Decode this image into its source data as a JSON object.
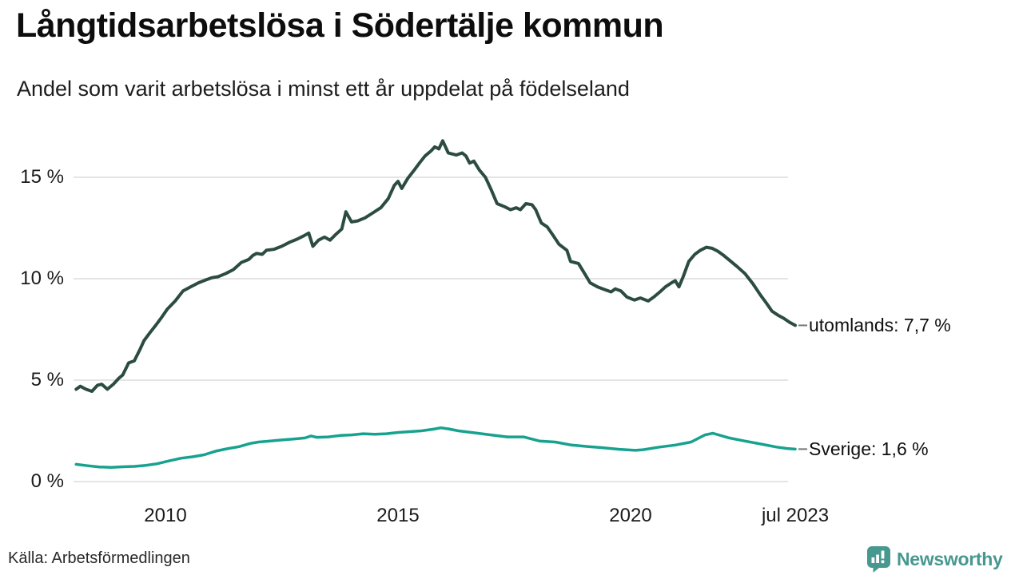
{
  "header": {
    "title": "Långtidsarbetslösa i Södertälje kommun",
    "subtitle": "Andel som varit arbetslösa i minst ett år uppdelat på födelseland"
  },
  "footer": {
    "source": "Källa: Arbetsförmedlingen",
    "brand": "Newsworthy"
  },
  "colors": {
    "series_utomlands": "#2c4c42",
    "series_sverige": "#17a28f",
    "grid": "#e4e4e4",
    "leader_dash": "#777777",
    "brand_teal": "#47988e",
    "text": "#1a1a1a"
  },
  "chart_data": {
    "type": "line",
    "title": "Långtidsarbetslösa i Södertälje kommun",
    "subtitle": "Andel som varit arbetslösa i minst ett år uppdelat på födelseland",
    "unit": "%",
    "grid": "horizontal",
    "legend_position": "right-end-labels",
    "x_axis": {
      "range": [
        2008.0,
        2023.6
      ],
      "ticks": [
        {
          "label": "2010",
          "year": 2010
        },
        {
          "label": "2015",
          "year": 2015
        },
        {
          "label": "2020",
          "year": 2020
        },
        {
          "label": "jul 2023",
          "year": 2023.54
        }
      ]
    },
    "y_axis": {
      "range": [
        0,
        17.3
      ],
      "ticks": [
        {
          "label": "15 %",
          "value": 15
        },
        {
          "label": "10 %",
          "value": 10
        },
        {
          "label": "5 %",
          "value": 5
        },
        {
          "label": "0 %",
          "value": 0
        }
      ]
    },
    "series": [
      {
        "name": "utomlands",
        "label": "utomlands: 7,7 %",
        "end_value": 7.7,
        "color": "#2c4c42",
        "stroke_width": 4,
        "points": [
          [
            2008.08,
            4.55
          ],
          [
            2008.17,
            4.7
          ],
          [
            2008.29,
            4.55
          ],
          [
            2008.42,
            4.45
          ],
          [
            2008.54,
            4.75
          ],
          [
            2008.63,
            4.8
          ],
          [
            2008.75,
            4.55
          ],
          [
            2008.88,
            4.8
          ],
          [
            2009.0,
            5.1
          ],
          [
            2009.08,
            5.25
          ],
          [
            2009.21,
            5.85
          ],
          [
            2009.33,
            5.95
          ],
          [
            2009.46,
            6.55
          ],
          [
            2009.54,
            6.95
          ],
          [
            2009.67,
            7.35
          ],
          [
            2009.79,
            7.7
          ],
          [
            2009.92,
            8.1
          ],
          [
            2010.04,
            8.5
          ],
          [
            2010.21,
            8.9
          ],
          [
            2010.38,
            9.4
          ],
          [
            2010.54,
            9.6
          ],
          [
            2010.71,
            9.8
          ],
          [
            2010.88,
            9.95
          ],
          [
            2011.0,
            10.05
          ],
          [
            2011.13,
            10.1
          ],
          [
            2011.29,
            10.25
          ],
          [
            2011.46,
            10.45
          ],
          [
            2011.63,
            10.8
          ],
          [
            2011.79,
            10.95
          ],
          [
            2011.88,
            11.15
          ],
          [
            2011.96,
            11.25
          ],
          [
            2012.08,
            11.2
          ],
          [
            2012.17,
            11.4
          ],
          [
            2012.33,
            11.45
          ],
          [
            2012.5,
            11.6
          ],
          [
            2012.67,
            11.8
          ],
          [
            2012.83,
            11.95
          ],
          [
            2012.96,
            12.1
          ],
          [
            2013.08,
            12.25
          ],
          [
            2013.17,
            11.6
          ],
          [
            2013.29,
            11.9
          ],
          [
            2013.42,
            12.05
          ],
          [
            2013.54,
            11.9
          ],
          [
            2013.67,
            12.2
          ],
          [
            2013.79,
            12.45
          ],
          [
            2013.88,
            13.3
          ],
          [
            2014.0,
            12.8
          ],
          [
            2014.13,
            12.85
          ],
          [
            2014.29,
            13.0
          ],
          [
            2014.46,
            13.25
          ],
          [
            2014.63,
            13.5
          ],
          [
            2014.79,
            13.95
          ],
          [
            2014.92,
            14.6
          ],
          [
            2015.0,
            14.8
          ],
          [
            2015.08,
            14.45
          ],
          [
            2015.21,
            14.95
          ],
          [
            2015.33,
            15.3
          ],
          [
            2015.46,
            15.7
          ],
          [
            2015.58,
            16.05
          ],
          [
            2015.71,
            16.3
          ],
          [
            2015.79,
            16.5
          ],
          [
            2015.88,
            16.4
          ],
          [
            2015.96,
            16.8
          ],
          [
            2016.08,
            16.2
          ],
          [
            2016.25,
            16.1
          ],
          [
            2016.38,
            16.2
          ],
          [
            2016.46,
            16.05
          ],
          [
            2016.54,
            15.7
          ],
          [
            2016.63,
            15.8
          ],
          [
            2016.75,
            15.35
          ],
          [
            2016.88,
            15.0
          ],
          [
            2017.0,
            14.4
          ],
          [
            2017.13,
            13.7
          ],
          [
            2017.29,
            13.55
          ],
          [
            2017.42,
            13.4
          ],
          [
            2017.54,
            13.5
          ],
          [
            2017.63,
            13.4
          ],
          [
            2017.75,
            13.7
          ],
          [
            2017.88,
            13.65
          ],
          [
            2017.96,
            13.4
          ],
          [
            2018.08,
            12.75
          ],
          [
            2018.21,
            12.55
          ],
          [
            2018.33,
            12.15
          ],
          [
            2018.46,
            11.7
          ],
          [
            2018.63,
            11.4
          ],
          [
            2018.71,
            10.85
          ],
          [
            2018.88,
            10.75
          ],
          [
            2019.0,
            10.3
          ],
          [
            2019.13,
            9.8
          ],
          [
            2019.29,
            9.6
          ],
          [
            2019.46,
            9.45
          ],
          [
            2019.58,
            9.35
          ],
          [
            2019.67,
            9.5
          ],
          [
            2019.79,
            9.4
          ],
          [
            2019.92,
            9.1
          ],
          [
            2020.08,
            8.95
          ],
          [
            2020.21,
            9.05
          ],
          [
            2020.38,
            8.9
          ],
          [
            2020.5,
            9.1
          ],
          [
            2020.63,
            9.35
          ],
          [
            2020.75,
            9.6
          ],
          [
            2020.88,
            9.8
          ],
          [
            2020.96,
            9.9
          ],
          [
            2021.04,
            9.6
          ],
          [
            2021.13,
            10.1
          ],
          [
            2021.25,
            10.85
          ],
          [
            2021.38,
            11.2
          ],
          [
            2021.5,
            11.4
          ],
          [
            2021.63,
            11.55
          ],
          [
            2021.75,
            11.5
          ],
          [
            2021.88,
            11.35
          ],
          [
            2022.0,
            11.15
          ],
          [
            2022.13,
            10.9
          ],
          [
            2022.29,
            10.6
          ],
          [
            2022.46,
            10.25
          ],
          [
            2022.63,
            9.75
          ],
          [
            2022.79,
            9.2
          ],
          [
            2022.92,
            8.8
          ],
          [
            2023.04,
            8.4
          ],
          [
            2023.17,
            8.2
          ],
          [
            2023.29,
            8.05
          ],
          [
            2023.42,
            7.85
          ],
          [
            2023.54,
            7.7
          ]
        ]
      },
      {
        "name": "Sverige",
        "label": "Sverige: 1,6 %",
        "end_value": 1.6,
        "color": "#17a28f",
        "stroke_width": 3.5,
        "points": [
          [
            2008.08,
            0.85
          ],
          [
            2008.33,
            0.78
          ],
          [
            2008.58,
            0.72
          ],
          [
            2008.83,
            0.7
          ],
          [
            2009.08,
            0.73
          ],
          [
            2009.33,
            0.75
          ],
          [
            2009.58,
            0.8
          ],
          [
            2009.83,
            0.88
          ],
          [
            2010.08,
            1.02
          ],
          [
            2010.33,
            1.15
          ],
          [
            2010.58,
            1.22
          ],
          [
            2010.83,
            1.32
          ],
          [
            2011.08,
            1.5
          ],
          [
            2011.33,
            1.62
          ],
          [
            2011.58,
            1.72
          ],
          [
            2011.83,
            1.88
          ],
          [
            2012.0,
            1.95
          ],
          [
            2012.25,
            2.0
          ],
          [
            2012.5,
            2.05
          ],
          [
            2012.75,
            2.1
          ],
          [
            2013.0,
            2.15
          ],
          [
            2013.13,
            2.25
          ],
          [
            2013.25,
            2.18
          ],
          [
            2013.5,
            2.2
          ],
          [
            2013.75,
            2.27
          ],
          [
            2014.0,
            2.3
          ],
          [
            2014.25,
            2.36
          ],
          [
            2014.5,
            2.33
          ],
          [
            2014.75,
            2.36
          ],
          [
            2015.0,
            2.42
          ],
          [
            2015.25,
            2.46
          ],
          [
            2015.5,
            2.5
          ],
          [
            2015.75,
            2.58
          ],
          [
            2015.92,
            2.65
          ],
          [
            2016.08,
            2.6
          ],
          [
            2016.3,
            2.5
          ],
          [
            2016.65,
            2.4
          ],
          [
            2017.0,
            2.3
          ],
          [
            2017.35,
            2.2
          ],
          [
            2017.7,
            2.2
          ],
          [
            2018.04,
            2.0
          ],
          [
            2018.38,
            1.95
          ],
          [
            2018.73,
            1.8
          ],
          [
            2019.07,
            1.73
          ],
          [
            2019.4,
            1.67
          ],
          [
            2019.76,
            1.59
          ],
          [
            2020.1,
            1.54
          ],
          [
            2020.27,
            1.57
          ],
          [
            2020.62,
            1.7
          ],
          [
            2020.96,
            1.8
          ],
          [
            2021.3,
            1.95
          ],
          [
            2021.6,
            2.3
          ],
          [
            2021.77,
            2.38
          ],
          [
            2022.1,
            2.16
          ],
          [
            2022.45,
            2.0
          ],
          [
            2022.8,
            1.85
          ],
          [
            2023.14,
            1.7
          ],
          [
            2023.37,
            1.63
          ],
          [
            2023.54,
            1.6
          ]
        ]
      }
    ]
  }
}
